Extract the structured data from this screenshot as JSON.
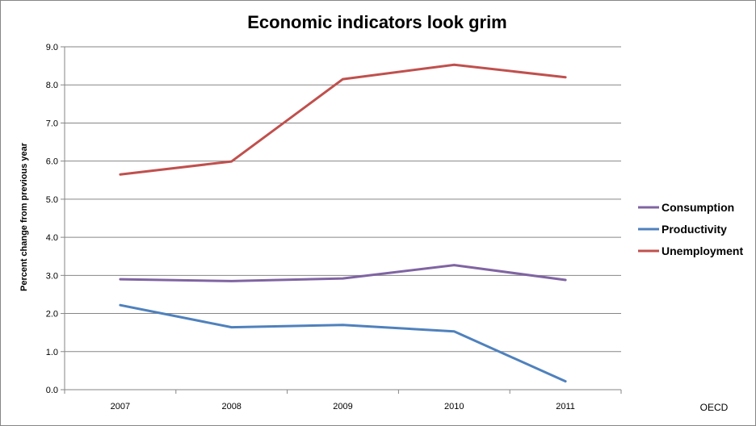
{
  "chart_data": {
    "type": "line",
    "title": "Economic indicators look grim",
    "xlabel": "",
    "ylabel": "Percent change from previous year",
    "source": "OECD",
    "categories": [
      "2007",
      "2008",
      "2009",
      "2010",
      "2011"
    ],
    "yticks": [
      "0.0",
      "1.0",
      "2.0",
      "3.0",
      "4.0",
      "5.0",
      "6.0",
      "7.0",
      "8.0",
      "9.0"
    ],
    "ylim": [
      0,
      9
    ],
    "grid": true,
    "legend_position": "right",
    "series": [
      {
        "name": "Consumption",
        "color": "#8064a2",
        "values": [
          2.9,
          2.85,
          2.92,
          3.27,
          2.88
        ]
      },
      {
        "name": "Productivity",
        "color": "#4f81bd",
        "values": [
          2.22,
          1.64,
          1.7,
          1.53,
          0.22
        ]
      },
      {
        "name": "Unemployment",
        "color": "#c0504d",
        "values": [
          5.65,
          5.99,
          8.15,
          8.53,
          8.2
        ]
      }
    ]
  }
}
